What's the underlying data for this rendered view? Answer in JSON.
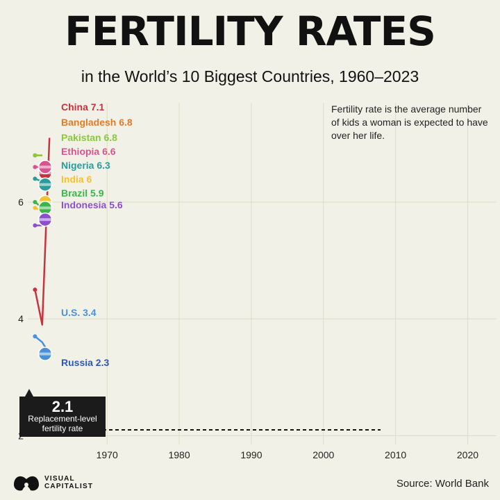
{
  "title": "FERTILITY RATES",
  "subtitle": "in the World’s 10 Biggest Countries, 1960–2023",
  "note": "Fertility rate is the average number of kids a woman is expected to have over her life.",
  "source": "Source: World Bank",
  "brand": {
    "line1": "VISUAL",
    "line2": "CAPITALIST"
  },
  "replacement": {
    "value": "2.1",
    "label": "Replacement-level fertility rate"
  },
  "chart_data": {
    "type": "line",
    "title": "FERTILITY RATES",
    "subtitle": "in the World’s 10 Biggest Countries, 1960–2023",
    "xlabel": "",
    "ylabel": "",
    "x_ticks": [
      1970,
      1980,
      1990,
      2000,
      2010,
      2020
    ],
    "y_ticks": [
      2,
      4,
      6
    ],
    "xlim": [
      1959,
      2024
    ],
    "ylim": [
      1.85,
      7.7
    ],
    "grid": true,
    "reference_line": {
      "value": 2.1,
      "label": "Replacement-level fertility rate"
    },
    "series": [
      {
        "name": "China",
        "value_label": "7.1",
        "color": "#c8323c",
        "marker_y": 6.5,
        "points": [
          [
            1960,
            4.5
          ],
          [
            1961,
            3.9
          ],
          [
            1962,
            7.1
          ]
        ]
      },
      {
        "name": "Bangladesh",
        "value_label": "6.8",
        "color": "#e07b2a",
        "marker_y": 6.3,
        "points": [
          [
            1960,
            6.8
          ],
          [
            1961,
            6.8
          ]
        ]
      },
      {
        "name": "Pakistan",
        "value_label": "6.8",
        "color": "#8cc63f",
        "marker_y": 6.6,
        "points": [
          [
            1960,
            6.8
          ],
          [
            1961,
            6.8
          ]
        ]
      },
      {
        "name": "Ethiopia",
        "value_label": "6.6",
        "color": "#d9548f",
        "marker_y": 6.6,
        "points": [
          [
            1960,
            6.6
          ],
          [
            1961,
            6.6
          ]
        ]
      },
      {
        "name": "Nigeria",
        "value_label": "6.3",
        "color": "#2a9d9a",
        "marker_y": 6.3,
        "points": [
          [
            1960,
            6.4
          ],
          [
            1961,
            6.35
          ]
        ]
      },
      {
        "name": "India",
        "value_label": "6",
        "color": "#f2c230",
        "marker_y": 6.0,
        "points": [
          [
            1960,
            5.9
          ],
          [
            1961,
            5.85
          ]
        ]
      },
      {
        "name": "Brazil",
        "value_label": "5.9",
        "color": "#3bb54a",
        "marker_y": 5.9,
        "points": [
          [
            1960,
            6.0
          ],
          [
            1961,
            5.9
          ]
        ]
      },
      {
        "name": "Indonesia",
        "value_label": "5.6",
        "color": "#8b4fcf",
        "marker_y": 5.7,
        "points": [
          [
            1960,
            5.6
          ],
          [
            1961,
            5.6
          ]
        ]
      },
      {
        "name": "U.S.",
        "value_label": "3.4",
        "color": "#4a90d9",
        "marker_y": 3.4,
        "points": [
          [
            1960,
            3.7
          ],
          [
            1961,
            3.6
          ],
          [
            1962,
            3.4
          ]
        ]
      },
      {
        "name": "Russia",
        "value_label": "2.3",
        "color": "#2f57b5",
        "marker_y": 2.3,
        "points": [
          [
            1960,
            2.6
          ],
          [
            1961,
            2.55
          ],
          [
            1962,
            2.3
          ]
        ]
      }
    ]
  }
}
